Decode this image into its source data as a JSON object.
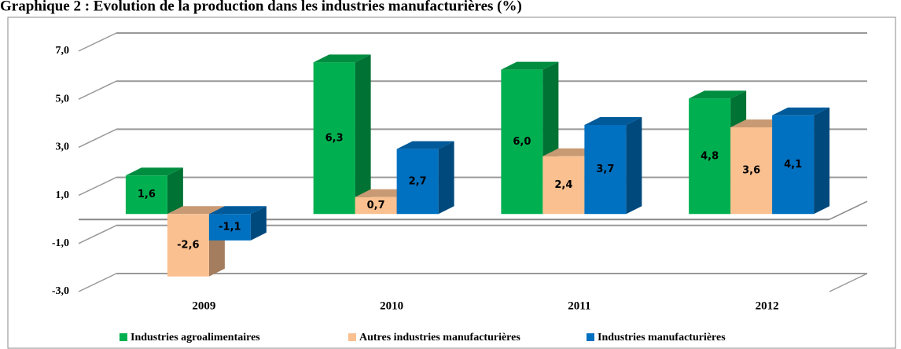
{
  "chart_data": {
    "type": "bar3d",
    "title": "Graphique 2 : Evolution de la production dans les industries manufacturières (%)",
    "categories": [
      "2009",
      "2010",
      "2011",
      "2012"
    ],
    "series": [
      {
        "name": "Industries agroalimentaires",
        "color": "#00b050",
        "values": [
          1.6,
          6.3,
          6.0,
          4.8
        ],
        "value_labels": [
          "1,6",
          "6,3",
          "6,0",
          "4,8"
        ]
      },
      {
        "name": "Autres industries manufacturières",
        "color": "#fac090",
        "values": [
          -2.6,
          0.7,
          2.4,
          3.6
        ],
        "value_labels": [
          "-2,6",
          "0,7",
          "2,4",
          "3,6"
        ]
      },
      {
        "name": "Industries manufacturières",
        "color": "#0070c0",
        "values": [
          -1.1,
          2.7,
          3.7,
          4.1
        ],
        "value_labels": [
          "-1,1",
          "2,7",
          "3,7",
          "4,1"
        ]
      }
    ],
    "ylim": [
      -3,
      7
    ],
    "yticks": [
      {
        "value": -3,
        "label": "-3,0"
      },
      {
        "value": -1,
        "label": "-1,0"
      },
      {
        "value": 1,
        "label": "1,0"
      },
      {
        "value": 3,
        "label": "3,0"
      },
      {
        "value": 5,
        "label": "5,0"
      },
      {
        "value": 7,
        "label": "7,0"
      }
    ],
    "grid": true,
    "legend": "bottom"
  }
}
